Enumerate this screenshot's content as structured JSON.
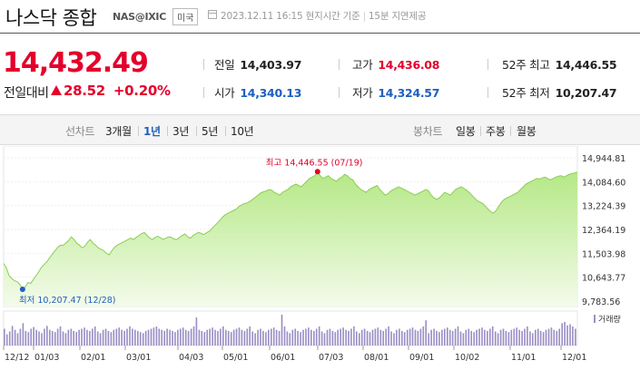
{
  "header": {
    "title": "나스닥 종합",
    "code": "NAS@IXIC",
    "country": "미국",
    "timestamp": "2023.12.11 16:15",
    "time_basis": "현지시간 기준",
    "delay_note": "15분 지연제공"
  },
  "quote": {
    "price": "14,432.49",
    "change_label": "전일대비",
    "change": "28.52",
    "change_pct": "+0.20%"
  },
  "stats": {
    "prev_close_label": "전일",
    "prev_close": "14,403.97",
    "high_label": "고가",
    "high": "14,436.08",
    "high52_label": "52주 최고",
    "high52": "14,446.55",
    "open_label": "시가",
    "open": "14,340.13",
    "low_label": "저가",
    "low": "14,324.57",
    "low52_label": "52주 최저",
    "low52": "10,207.47"
  },
  "toolbar": {
    "line_chart_label": "선차트",
    "ranges": [
      "3개월",
      "1년",
      "3년",
      "5년",
      "10년"
    ],
    "active_range": "1년",
    "candle_chart_label": "봉차트",
    "periods": [
      "일봉",
      "주봉",
      "월봉"
    ]
  },
  "colors": {
    "up": "#e4002b",
    "down": "#1f5fbf",
    "area_fill": "#b5e886",
    "area_line": "#8dcc55",
    "volume": "#9b8ec4"
  },
  "chart_data": {
    "type": "area",
    "y_ticks": [
      "14,944.81",
      "14,084.60",
      "13,224.39",
      "12,364.19",
      "11,503.98",
      "10,643.77",
      "9,783.56"
    ],
    "ylim": [
      9783.56,
      14944.81
    ],
    "x_ticks": [
      "12/12",
      "01/03",
      "02/01",
      "03/01",
      "04/03",
      "05/01",
      "06/01",
      "07/03",
      "08/01",
      "09/01",
      "10/02",
      "11/01",
      "12/01"
    ],
    "volume_label": "거래량",
    "max_annotation": {
      "label": "최고",
      "value": "14,446.55",
      "date": "(07/19)",
      "y": 14446.55
    },
    "min_annotation": {
      "label": "최저",
      "value": "10,207.47",
      "date": "(12/28)",
      "y": 10207.47
    },
    "series": [
      {
        "values": [
          11140,
          10980,
          10700,
          10600,
          10520,
          10480,
          10380,
          10207,
          10300,
          10450,
          10420,
          10560,
          10700,
          10850,
          11000,
          11100,
          11200,
          11350,
          11470,
          11600,
          11720,
          11800,
          11790,
          11880,
          11960,
          12100,
          12000,
          11870,
          11800,
          11700,
          11760,
          11900,
          12000,
          11870,
          11800,
          11700,
          11650,
          11600,
          11500,
          11450,
          11600,
          11720,
          11800,
          11850,
          11900,
          11950,
          12000,
          12050,
          12000,
          12080,
          12150,
          12220,
          12250,
          12150,
          12050,
          12000,
          12080,
          12120,
          12060,
          12000,
          12050,
          12100,
          12080,
          12020,
          12000,
          12080,
          12150,
          12200,
          12100,
          12050,
          12150,
          12200,
          12260,
          12220,
          12180,
          12250,
          12300,
          12400,
          12500,
          12600,
          12700,
          12820,
          12900,
          12950,
          13000,
          13050,
          13100,
          13200,
          13250,
          13300,
          13320,
          13380,
          13450,
          13520,
          13600,
          13680,
          13720,
          13750,
          13800,
          13780,
          13700,
          13650,
          13600,
          13700,
          13750,
          13800,
          13900,
          13950,
          14000,
          13950,
          13900,
          14000,
          14100,
          14200,
          14250,
          14300,
          14446,
          14300,
          14200,
          14250,
          14300,
          14200,
          14150,
          14100,
          14200,
          14250,
          14350,
          14300,
          14200,
          14150,
          14000,
          13900,
          13800,
          13750,
          13700,
          13800,
          13850,
          13900,
          13950,
          13800,
          13700,
          13600,
          13650,
          13750,
          13800,
          13850,
          13900,
          13850,
          13800,
          13750,
          13700,
          13650,
          13600,
          13650,
          13700,
          13750,
          13800,
          13760,
          13600,
          13500,
          13450,
          13500,
          13600,
          13700,
          13650,
          13600,
          13700,
          13800,
          13850,
          13900,
          13850,
          13780,
          13700,
          13600,
          13500,
          13400,
          13350,
          13300,
          13200,
          13100,
          13000,
          12950,
          13050,
          13200,
          13350,
          13450,
          13500,
          13550,
          13600,
          13650,
          13700,
          13800,
          13900,
          14000,
          14050,
          14100,
          14150,
          14200,
          14180,
          14220,
          14250,
          14200,
          14150,
          14200,
          14250,
          14280,
          14300,
          14250,
          14300,
          14350,
          14380,
          14400,
          14432
        ]
      }
    ],
    "volume": [
      30,
      20,
      25,
      35,
      28,
      22,
      30,
      40,
      26,
      24,
      30,
      33,
      28,
      25,
      22,
      30,
      35,
      28,
      26,
      24,
      30,
      34,
      25,
      22,
      28,
      30,
      26,
      24,
      28,
      30,
      32,
      28,
      26,
      30,
      34,
      25,
      22,
      28,
      30,
      26,
      24,
      28,
      30,
      32,
      28,
      26,
      30,
      34,
      30,
      28,
      26,
      24,
      22,
      26,
      28,
      30,
      32,
      34,
      30,
      28,
      26,
      30,
      28,
      26,
      24,
      28,
      30,
      32,
      28,
      26,
      30,
      34,
      50,
      28,
      26,
      24,
      28,
      30,
      32,
      28,
      26,
      30,
      34,
      28,
      26,
      24,
      28,
      30,
      32,
      28,
      26,
      30,
      34,
      25,
      22,
      28,
      30,
      26,
      24,
      28,
      30,
      32,
      28,
      26,
      55,
      34,
      25,
      22,
      28,
      30,
      26,
      24,
      28,
      30,
      32,
      28,
      26,
      30,
      34,
      25,
      22,
      28,
      30,
      26,
      24,
      28,
      30,
      32,
      28,
      26,
      30,
      34,
      25,
      22,
      28,
      30,
      26,
      24,
      28,
      30,
      32,
      28,
      26,
      30,
      34,
      25,
      22,
      28,
      30,
      26,
      24,
      28,
      30,
      32,
      28,
      26,
      30,
      34,
      45,
      22,
      28,
      30,
      26,
      24,
      28,
      30,
      32,
      28,
      26,
      30,
      34,
      25,
      22,
      28,
      30,
      26,
      24,
      28,
      30,
      32,
      28,
      26,
      30,
      34,
      25,
      22,
      28,
      30,
      26,
      24,
      28,
      30,
      32,
      28,
      26,
      30,
      34,
      25,
      22,
      28,
      30,
      26,
      24,
      28,
      30,
      32,
      28,
      26,
      30,
      40,
      42,
      36,
      38,
      34,
      30
    ]
  }
}
